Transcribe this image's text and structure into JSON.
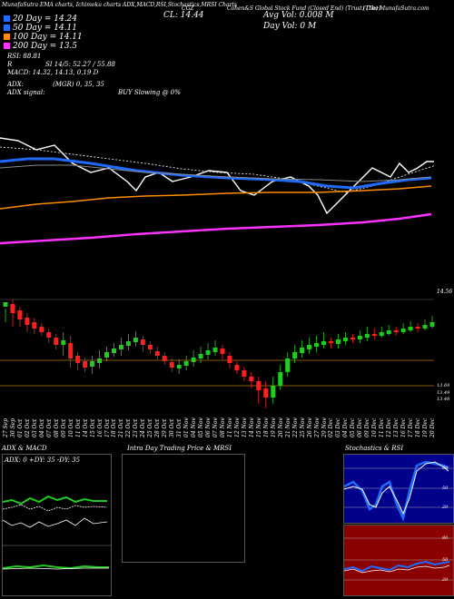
{
  "header": {
    "left_title": "MunafaSutra EMA charts, Ichimoku charts ADX,MACD,RSI,Stochastics,MRSI Charts",
    "symbol": "CGZ",
    "company": "Cohen&S Global Stock Fund (Closed End) (Trust) (The)",
    "site": "(The) MunafaSutra.com",
    "close_label": "CL: 14.44",
    "avg_vol": "Avg Vol: 0.008 M",
    "day_vol": "Day Vol: 0 M"
  },
  "indicators": {
    "ema20": "20 Day = 14.24",
    "ema50": "50 Day = 14.11",
    "ema100": "100 Day = 14.11",
    "ema200": "200 Day = 13.5",
    "rsi": "RSI: 88.81",
    "r_line": "R",
    "si": "SI 14/5: 52.27 / 55.88",
    "macd": "MACD: 14.32, 14.13, 0.19 D",
    "adx": "ADX:",
    "mgr": "(MGR) 0,  35,  35",
    "adx_signal": "ADX signal:",
    "buy_signal": "BUY Slowing @ 0%"
  },
  "price_labels": {
    "top": "14.56",
    "bottom1": "13.69",
    "bottom2": "13.49",
    "bottom3": "13.48"
  },
  "dates": [
    "27 Sep",
    "30 Sep",
    "01 Oct",
    "02 Oct",
    "03 Oct",
    "04 Oct",
    "07 Oct",
    "08 Oct",
    "09 Oct",
    "10 Oct",
    "11 Oct",
    "14 Oct",
    "15 Oct",
    "16 Oct",
    "17 Oct",
    "18 Oct",
    "21 Oct",
    "22 Oct",
    "23 Oct",
    "24 Oct",
    "25 Oct",
    "28 Oct",
    "29 Oct",
    "30 Oct",
    "31 Oct",
    "01 Nov",
    "04 Nov",
    "05 Nov",
    "06 Nov",
    "07 Nov",
    "08 Nov",
    "11 Nov",
    "12 Nov",
    "13 Nov",
    "14 Nov",
    "15 Nov",
    "18 Nov",
    "19 Nov",
    "20 Nov",
    "21 Nov",
    "22 Nov",
    "25 Nov",
    "26 Nov",
    "27 Nov",
    "29 Nov",
    "02 Dec",
    "03 Dec",
    "04 Dec",
    "05 Dec",
    "06 Dec",
    "09 Dec",
    "10 Dec",
    "11 Dec",
    "12 Dec",
    "13 Dec",
    "16 Dec",
    "17 Dec",
    "18 Dec",
    "19 Dec",
    "20 Dec"
  ],
  "panels": {
    "adx_title": "ADX & MACD",
    "adx_values": "ADX: 0  +DY: 35  -DY: 35",
    "intraday_title": "Intra Day Trading Price & MRSI",
    "stoch_title": "Stochastics & RSI",
    "stoch_levels": [
      "80",
      "50",
      "20"
    ],
    "rsi_levels": [
      "80",
      "50",
      "20"
    ]
  },
  "colors": {
    "ema_blue": "#1f6bff",
    "ema_orange": "#ff8c00",
    "ema_magenta": "#ff33ff",
    "up": "#1fcc1f",
    "down": "#ff1f1f",
    "rsi_bg": "#8b0000",
    "stoch_bg": "#00008b"
  }
}
